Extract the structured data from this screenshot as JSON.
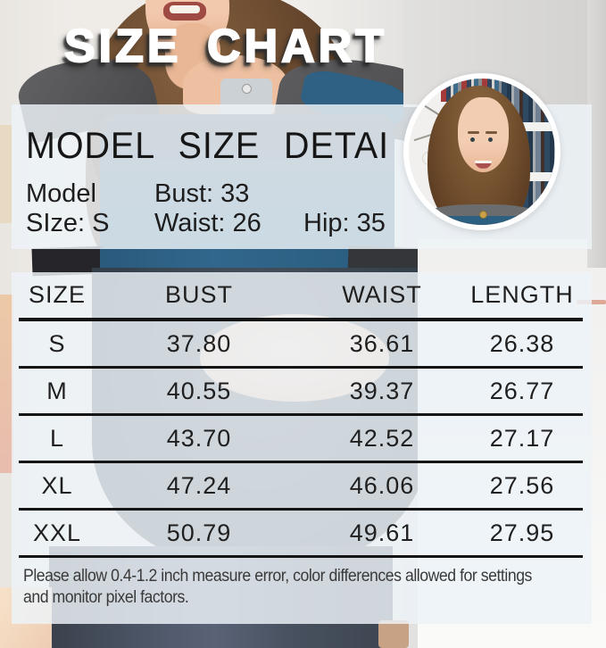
{
  "title": "SIZE CHART",
  "model_panel": {
    "heading": "MODEL SIZE DETAI",
    "model_label": "Model",
    "size_value": "SIze: S",
    "bust": "Bust: 33",
    "waist": "Waist: 26",
    "hip": "Hip: 35"
  },
  "chart_data": {
    "type": "table",
    "title": "SIZE CHART",
    "columns": [
      "SIZE",
      "BUST",
      "WAIST",
      "LENGTH"
    ],
    "rows": [
      [
        "S",
        "37.80",
        "36.61",
        "26.38"
      ],
      [
        "M",
        "40.55",
        "39.37",
        "26.77"
      ],
      [
        "L",
        "43.70",
        "42.52",
        "27.17"
      ],
      [
        "XL",
        "47.24",
        "46.06",
        "27.56"
      ],
      [
        "XXL",
        "50.79",
        "49.61",
        "27.95"
      ]
    ],
    "units": "inches"
  },
  "footer_note": {
    "line1": "Please allow 0.4-1.2 inch measure error, color differences allowed for settings",
    "line2": "and monitor pixel factors."
  },
  "colors": {
    "shirt_teal": "#2e6183",
    "panel_overlay": "#edf3f8",
    "title_text": "#ffffff",
    "title_shadow": "#2d2d2d",
    "table_line": "#151515"
  }
}
